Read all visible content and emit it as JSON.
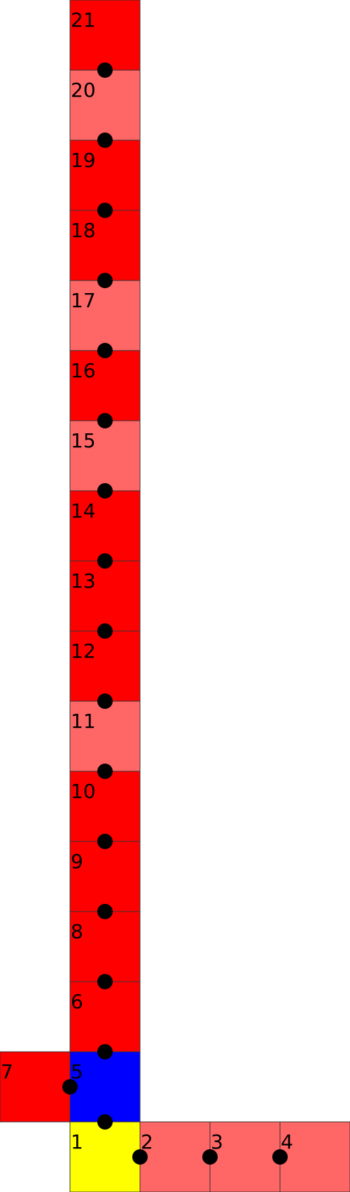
{
  "colors": {
    "red": "#ff0000",
    "light_red": "#ff6666",
    "blue": "#0000ff",
    "yellow": "#ffff00",
    "joint": "#000000"
  },
  "cells": [
    {
      "label": "1",
      "col": 1,
      "row": 16,
      "color": "yellow"
    },
    {
      "label": "2",
      "col": 2,
      "row": 16,
      "color": "light_red"
    },
    {
      "label": "3",
      "col": 3,
      "row": 16,
      "color": "light_red"
    },
    {
      "label": "4",
      "col": 4,
      "row": 16,
      "color": "light_red"
    },
    {
      "label": "5",
      "col": 1,
      "row": 15,
      "color": "blue"
    },
    {
      "label": "7",
      "col": 0,
      "row": 15,
      "color": "red"
    },
    {
      "label": "6",
      "col": 1,
      "row": 14,
      "color": "red"
    },
    {
      "label": "8",
      "col": 1,
      "row": 13,
      "color": "red"
    },
    {
      "label": "9",
      "col": 1,
      "row": 12,
      "color": "red"
    },
    {
      "label": "10",
      "col": 1,
      "row": 11,
      "color": "red"
    },
    {
      "label": "11",
      "col": 1,
      "row": 10,
      "color": "light_red"
    },
    {
      "label": "12",
      "col": 1,
      "row": 9,
      "color": "red"
    },
    {
      "label": "13",
      "col": 1,
      "row": 8,
      "color": "red"
    },
    {
      "label": "14",
      "col": 1,
      "row": 7,
      "color": "red"
    },
    {
      "label": "15",
      "col": 1,
      "row": 6,
      "color": "light_red"
    },
    {
      "label": "16",
      "col": 1,
      "row": 5,
      "color": "red"
    },
    {
      "label": "17",
      "col": 1,
      "row": 4,
      "color": "light_red"
    },
    {
      "label": "18",
      "col": 1,
      "row": 3,
      "color": "red"
    },
    {
      "label": "19",
      "col": 1,
      "row": 2,
      "color": "red"
    },
    {
      "label": "20",
      "col": 1,
      "row": 1,
      "color": "light_red"
    },
    {
      "label": "21",
      "col": 1,
      "row": 0,
      "color": "red"
    }
  ],
  "joints": [
    {
      "between": [
        "1",
        "2"
      ]
    },
    {
      "between": [
        "2",
        "3"
      ]
    },
    {
      "between": [
        "3",
        "4"
      ]
    },
    {
      "between": [
        "1",
        "5"
      ]
    },
    {
      "between": [
        "5",
        "7"
      ]
    },
    {
      "between": [
        "5",
        "6"
      ]
    },
    {
      "between": [
        "6",
        "8"
      ]
    },
    {
      "between": [
        "8",
        "9"
      ]
    },
    {
      "between": [
        "9",
        "10"
      ]
    },
    {
      "between": [
        "10",
        "11"
      ]
    },
    {
      "between": [
        "11",
        "12"
      ]
    },
    {
      "between": [
        "12",
        "13"
      ]
    },
    {
      "between": [
        "13",
        "14"
      ]
    },
    {
      "between": [
        "14",
        "15"
      ]
    },
    {
      "between": [
        "15",
        "16"
      ]
    },
    {
      "between": [
        "16",
        "17"
      ]
    },
    {
      "between": [
        "17",
        "18"
      ]
    },
    {
      "between": [
        "18",
        "19"
      ]
    },
    {
      "between": [
        "19",
        "20"
      ]
    },
    {
      "between": [
        "20",
        "21"
      ]
    }
  ]
}
